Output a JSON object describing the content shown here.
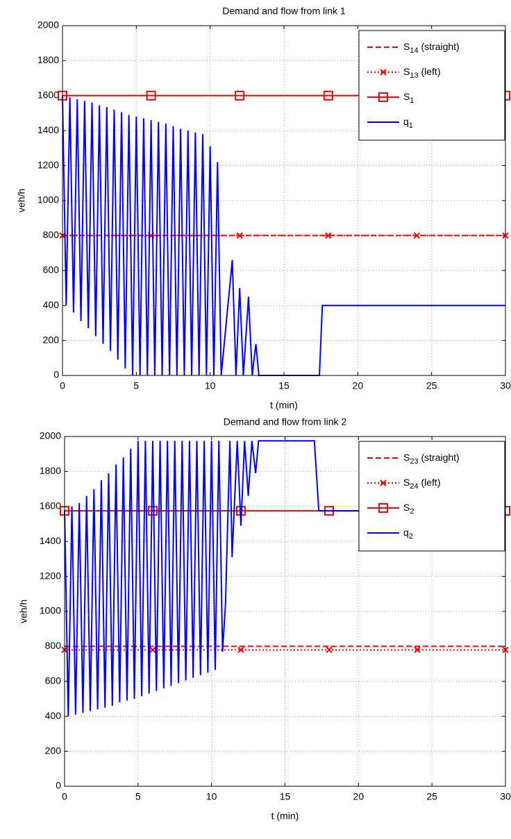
{
  "chart_data": [
    {
      "type": "line",
      "title": "Demand and flow from link 1",
      "x_label": "t (min)",
      "y_label": "veh/h",
      "xlim": [
        0,
        30
      ],
      "xticks": [
        0,
        5,
        10,
        15,
        20,
        25,
        30
      ],
      "ylim": [
        0,
        2000
      ],
      "yticks": [
        0,
        200,
        400,
        600,
        800,
        1000,
        1200,
        1400,
        1600,
        1800,
        2000
      ],
      "grid": true,
      "legend": "upper right",
      "series": [
        {
          "name": "S14 (straight)",
          "color": "#ff0000",
          "dash": "dashed",
          "marker": "none",
          "x": [
            0,
            30
          ],
          "values": [
            800,
            800
          ]
        },
        {
          "name": "S13 (left)",
          "color": "#ff0000",
          "dash": "dotted",
          "marker": "x",
          "x": [
            0,
            6,
            12,
            18,
            24,
            30
          ],
          "values": [
            800,
            800,
            800,
            800,
            800,
            800
          ]
        },
        {
          "name": "S1",
          "color": "#ff0000",
          "dash": "solid",
          "marker": "square",
          "x": [
            0,
            6,
            12,
            18,
            30
          ],
          "values": [
            1600,
            1600,
            1600,
            1600,
            1600
          ]
        },
        {
          "name": "q1",
          "color": "#0000ff",
          "dash": "solid",
          "marker": "none",
          "x": [
            0,
            0.25,
            0.5,
            0.75,
            1,
            1.25,
            1.5,
            1.75,
            2,
            2.25,
            2.5,
            2.75,
            3,
            3.25,
            3.5,
            3.75,
            4,
            4.25,
            4.5,
            4.75,
            5,
            5.25,
            5.5,
            5.75,
            6,
            6.25,
            6.5,
            6.75,
            7,
            7.25,
            7.5,
            7.75,
            8,
            8.25,
            8.5,
            8.75,
            9,
            9.25,
            9.5,
            9.75,
            10,
            10.25,
            10.5,
            10.75,
            11.5,
            11.75,
            12,
            12.25,
            12.6,
            12.85,
            13.1,
            13.3,
            17.4,
            17.6,
            30
          ],
          "values": [
            1600,
            400,
            1590,
            360,
            1580,
            310,
            1570,
            270,
            1560,
            225,
            1545,
            180,
            1535,
            140,
            1520,
            90,
            1505,
            40,
            1490,
            0,
            1480,
            0,
            1470,
            0,
            1460,
            0,
            1450,
            0,
            1440,
            0,
            1425,
            0,
            1410,
            0,
            1400,
            0,
            1390,
            0,
            1380,
            0,
            1310,
            0,
            1220,
            0,
            660,
            0,
            500,
            0,
            450,
            0,
            180,
            0,
            0,
            400,
            400
          ]
        }
      ]
    },
    {
      "type": "line",
      "title": "Demand and flow from link 2",
      "x_label": "t (min)",
      "y_label": "veh/h",
      "xlim": [
        0,
        30
      ],
      "xticks": [
        0,
        5,
        10,
        15,
        20,
        25,
        30
      ],
      "ylim": [
        0,
        2000
      ],
      "yticks": [
        0,
        200,
        400,
        600,
        800,
        1000,
        1200,
        1400,
        1600,
        1800,
        2000
      ],
      "grid": true,
      "legend": "upper right",
      "series": [
        {
          "name": "S23 (straight)",
          "color": "#ff0000",
          "dash": "dashed",
          "marker": "none",
          "x": [
            0,
            30
          ],
          "values": [
            800,
            800
          ]
        },
        {
          "name": "S24 (left)",
          "color": "#ff0000",
          "dash": "dotted",
          "marker": "x",
          "x": [
            0,
            6,
            12,
            18,
            24,
            30
          ],
          "values": [
            780,
            780,
            780,
            780,
            780,
            780
          ]
        },
        {
          "name": "S2",
          "color": "#ff0000",
          "dash": "solid",
          "marker": "square",
          "x": [
            0,
            6,
            12,
            18,
            30
          ],
          "values": [
            1575,
            1575,
            1575,
            1575,
            1575
          ]
        },
        {
          "name": "q2",
          "color": "#0000ff",
          "dash": "solid",
          "marker": "none",
          "x": [
            0,
            0.25,
            0.5,
            0.75,
            1,
            1.25,
            1.5,
            1.75,
            2,
            2.25,
            2.5,
            2.75,
            3,
            3.25,
            3.5,
            3.75,
            4,
            4.25,
            4.5,
            4.75,
            5,
            5.25,
            5.5,
            5.75,
            6,
            6.25,
            6.5,
            6.75,
            7,
            7.25,
            7.5,
            7.75,
            8,
            8.25,
            8.5,
            8.75,
            9,
            9.25,
            9.5,
            9.75,
            10,
            10.25,
            10.5,
            10.75,
            10.95,
            11.25,
            11.4,
            11.75,
            12,
            12.25,
            12.5,
            12.75,
            13,
            13.2,
            17,
            17.3,
            30
          ],
          "values": [
            1580,
            400,
            1600,
            410,
            1620,
            420,
            1660,
            430,
            1700,
            440,
            1750,
            450,
            1790,
            460,
            1840,
            480,
            1880,
            490,
            1930,
            500,
            1975,
            515,
            1975,
            530,
            1975,
            545,
            1975,
            560,
            1975,
            575,
            1975,
            590,
            1975,
            605,
            1975,
            620,
            1975,
            635,
            1975,
            650,
            1975,
            665,
            1975,
            770,
            1040,
            1975,
            1310,
            1975,
            1490,
            1975,
            1660,
            1975,
            1790,
            1975,
            1975,
            1575,
            1575
          ]
        }
      ]
    }
  ]
}
